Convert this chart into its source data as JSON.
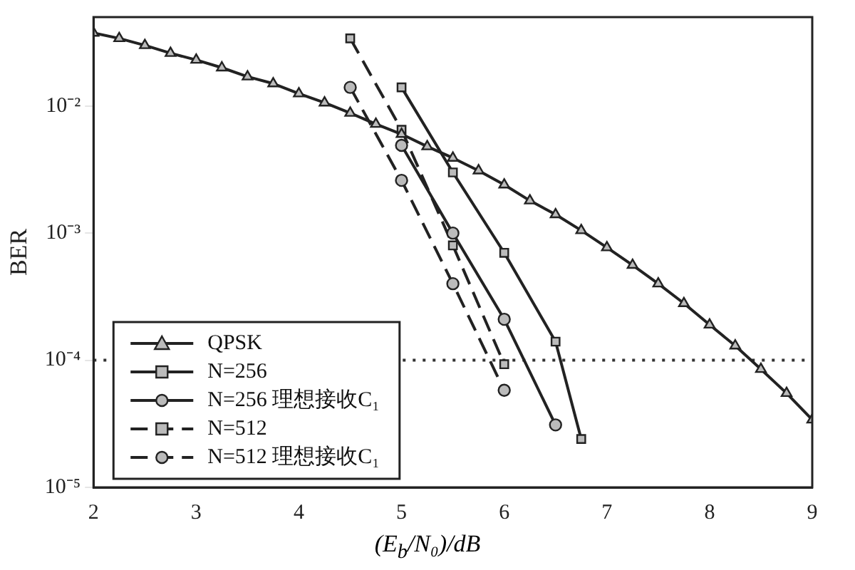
{
  "chart_data": {
    "type": "line",
    "xlabel": "(E$_{b}$/N₀)/dB",
    "ylabel": "BER",
    "x": [
      2,
      2.25,
      2.5,
      2.75,
      3,
      3.25,
      3.5,
      3.75,
      4,
      4.25,
      4.5,
      4.75,
      5,
      5.25,
      5.5,
      5.75,
      6,
      6.25,
      6.5,
      6.75,
      7,
      7.25,
      7.5,
      7.75,
      8,
      8.25,
      8.5,
      8.75,
      9
    ],
    "series": [
      {
        "name": "QPSK",
        "color": "#222222",
        "marker": "triangle",
        "line_style": "solid",
        "values": [
          0.0375,
          0.034,
          0.03,
          0.026,
          0.023,
          0.02,
          0.017,
          0.015,
          0.0125,
          0.0106,
          0.0088,
          0.0072,
          0.006,
          0.0048,
          0.0039,
          0.0031,
          0.0024,
          0.0018,
          0.0014,
          0.00105,
          0.00077,
          0.00056,
          0.0004,
          0.00028,
          0.00019,
          0.00013,
          8.5e-05,
          5.5e-05,
          3.4e-05
        ]
      },
      {
        "name": "N=256",
        "color": "#222222",
        "marker": "square",
        "line_style": "solid",
        "x": [
          5,
          5.5,
          6,
          6.5,
          6.75
        ],
        "values": [
          0.014,
          0.003,
          0.0007,
          0.00014,
          2.4e-05
        ]
      },
      {
        "name": "N=256 理想接收C₁",
        "color": "#222222",
        "marker": "circle",
        "line_style": "solid",
        "x": [
          5,
          5.5,
          6,
          6.5
        ],
        "values": [
          0.0049,
          0.001,
          0.00021,
          3.1e-05
        ]
      },
      {
        "name": "N=512",
        "color": "#222222",
        "marker": "square",
        "line_style": "dashed",
        "x": [
          4.5,
          5,
          5.5,
          6
        ],
        "values": [
          0.034,
          0.0065,
          0.0008,
          9.3e-05
        ]
      },
      {
        "name": "N=512 理想接收C₁",
        "color": "#222222",
        "marker": "circle",
        "line_style": "dashed",
        "x": [
          4.5,
          5,
          5.5,
          6
        ],
        "values": [
          0.014,
          0.0026,
          0.0004,
          5.8e-05
        ]
      }
    ],
    "xlim": [
      2,
      9
    ],
    "xticks": [
      2,
      3,
      4,
      5,
      6,
      7,
      8,
      9
    ],
    "ylim": [
      1e-05,
      0.05
    ],
    "log": "y",
    "yticks": [
      {
        "value": 1e-05,
        "label": "10⁻⁵"
      },
      {
        "value": 0.0001,
        "label": "10⁻⁴"
      },
      {
        "value": 0.001,
        "label": "10⁻³"
      },
      {
        "value": 0.01,
        "label": "10⁻²"
      }
    ],
    "ref_lines": [
      {
        "axis": "y",
        "value": 0.0001,
        "line_style": "dotted",
        "color": "#333333"
      }
    ],
    "grid": false,
    "legend": "bottom left"
  }
}
